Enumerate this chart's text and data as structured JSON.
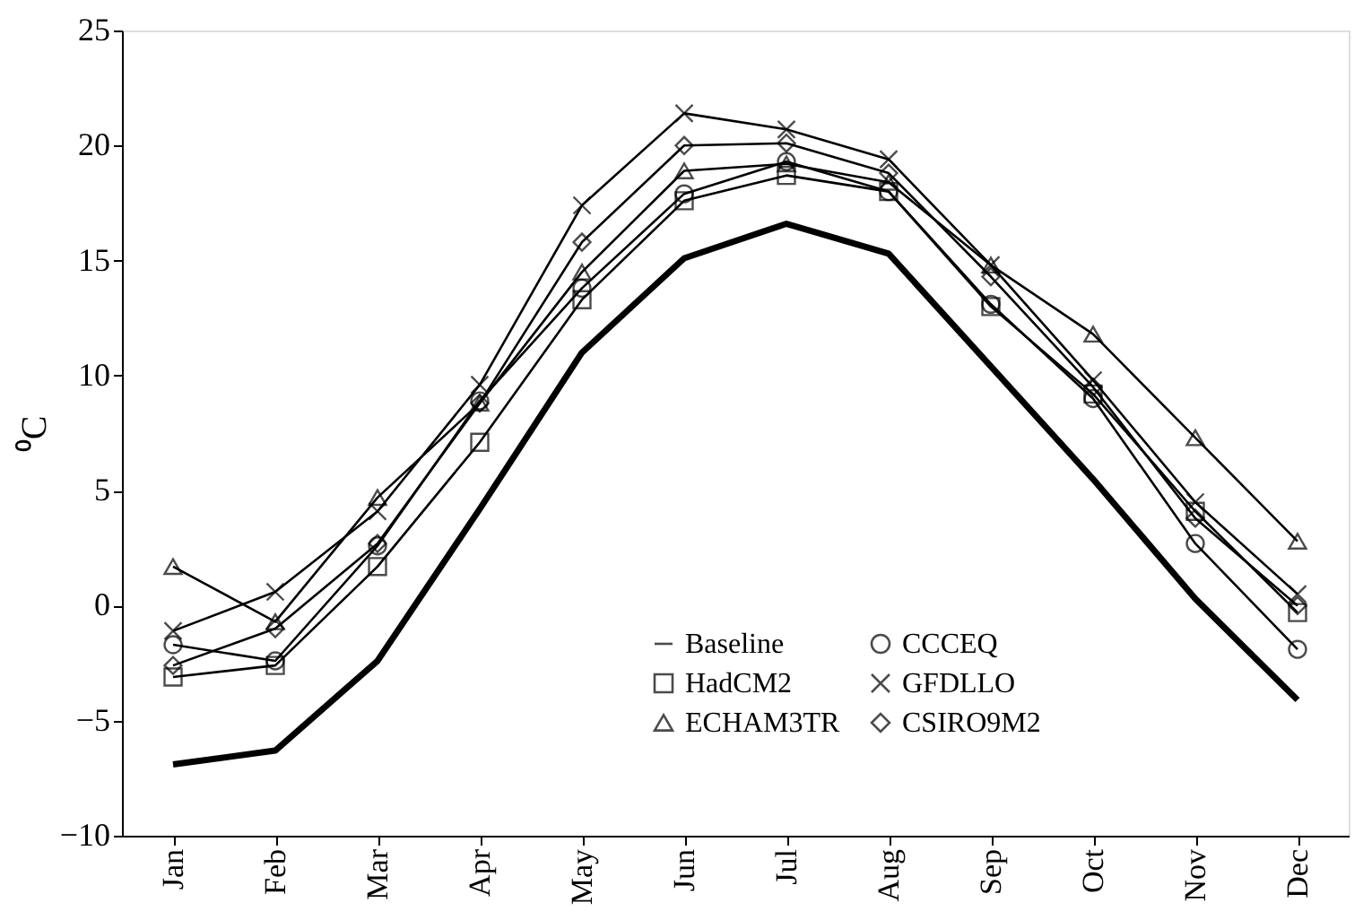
{
  "chart_data": {
    "type": "line",
    "ylabel": "⁰C",
    "categories": [
      "Jan",
      "Feb",
      "Mar",
      "Apr",
      "May",
      "Jun",
      "Jul",
      "Aug",
      "Sep",
      "Oct",
      "Nov",
      "Dec"
    ],
    "series": [
      {
        "name": "Baseline",
        "color": "#000000",
        "marker": "none",
        "values": [
          -6.9,
          -6.3,
          -2.4,
          4.2,
          11.0,
          15.1,
          16.6,
          15.3,
          10.4,
          5.5,
          0.3,
          -4.1
        ]
      },
      {
        "name": "HadCM2",
        "color": "#000000",
        "marker": "square",
        "values": [
          -3.1,
          -2.6,
          1.7,
          7.1,
          13.3,
          17.6,
          18.7,
          18.0,
          13.0,
          9.2,
          4.1,
          -0.3
        ]
      },
      {
        "name": "ECHAM3TR",
        "color": "#000000",
        "marker": "triangle",
        "values": [
          1.7,
          -0.7,
          4.7,
          8.8,
          14.5,
          18.9,
          19.2,
          18.4,
          14.8,
          11.8,
          7.3,
          2.8
        ]
      },
      {
        "name": "CCCEQ",
        "color": "#000000",
        "marker": "circle",
        "values": [
          -1.7,
          -2.4,
          2.6,
          8.9,
          13.8,
          17.9,
          19.3,
          18.0,
          13.1,
          9.0,
          2.7,
          -1.9
        ]
      },
      {
        "name": "GFDLLO",
        "color": "#000000",
        "marker": "cross",
        "values": [
          -1.1,
          0.6,
          4.1,
          9.6,
          17.4,
          21.4,
          20.7,
          19.4,
          14.8,
          9.8,
          4.5,
          0.5
        ]
      },
      {
        "name": "CSIRO9M2",
        "color": "#000000",
        "marker": "diamond",
        "values": [
          -2.6,
          -1.0,
          2.7,
          8.8,
          15.8,
          20.0,
          20.1,
          18.8,
          14.3,
          9.5,
          3.8,
          0.0
        ]
      }
    ],
    "ylim": [
      -10,
      25
    ],
    "yticks": [
      -10,
      -5,
      0,
      5,
      10,
      15,
      20,
      25
    ],
    "grid": false,
    "legend": "bottom right",
    "line_style": "solid"
  }
}
